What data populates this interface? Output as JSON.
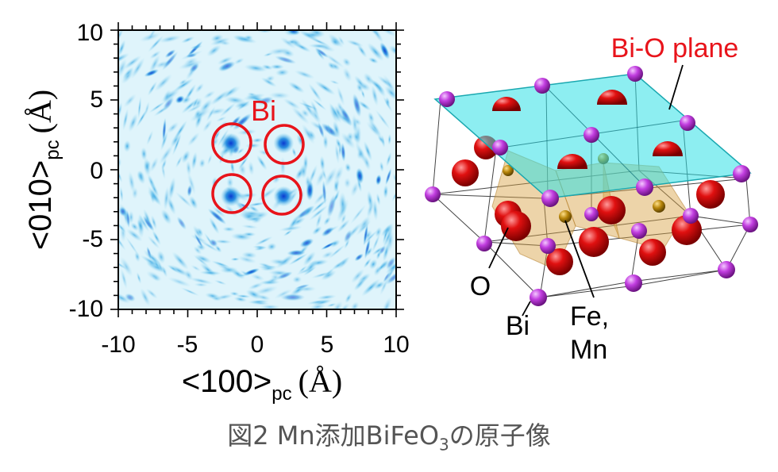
{
  "figure": {
    "left_panel": {
      "x_axis": {
        "label_main": "<100>",
        "label_sub": "pc",
        "label_unit": "(Å)",
        "tick_labels": [
          "-10",
          "-5",
          "0",
          "5",
          "10"
        ],
        "range": [
          -10,
          10
        ]
      },
      "y_axis": {
        "label_main": "<010>",
        "label_sub": "pc",
        "label_unit": "(Å)",
        "tick_labels": [
          "-10",
          "-5",
          "0",
          "5",
          "10"
        ],
        "range": [
          -10,
          10
        ]
      },
      "annotation": "Bi",
      "annotation_color": "#e8141b",
      "map_colors": [
        "#ffffff",
        "#36b8e0",
        "#0b3bd0"
      ],
      "bi_sites": [
        [
          -1.9,
          1.9
        ],
        [
          1.9,
          1.9
        ],
        [
          -1.9,
          -1.9
        ],
        [
          1.9,
          -1.9
        ]
      ]
    },
    "right_panel": {
      "plane_label": "Bi-O plane",
      "plane_label_color": "#e8141b",
      "plane_color": "#2fe0e6",
      "atom_labels": {
        "oxygen": "O",
        "bismuth": "Bi",
        "iron_line1": "Fe,",
        "iron_line2": "Mn"
      },
      "atom_colors": {
        "bismuth": "#c23ee0",
        "oxygen": "#e01010",
        "iron": "#b8860b"
      }
    }
  },
  "caption": {
    "prefix": "図2 Mn添加BiFeO",
    "subscript": "3",
    "suffix": "の原子像"
  }
}
